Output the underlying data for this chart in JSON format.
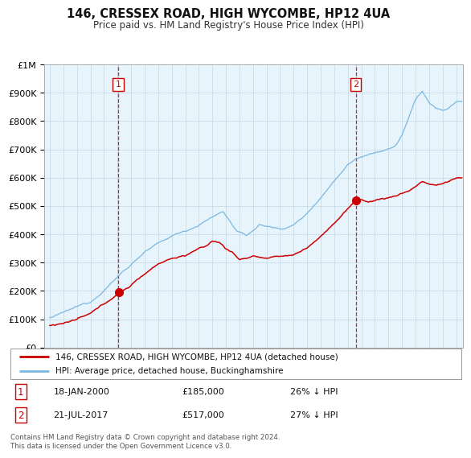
{
  "title": "146, CRESSEX ROAD, HIGH WYCOMBE, HP12 4UA",
  "subtitle": "Price paid vs. HM Land Registry's House Price Index (HPI)",
  "hpi_color": "#7ab8e0",
  "price_color": "#cc0000",
  "marker_color": "#cc0000",
  "bg_plot": "#e8f4fc",
  "transaction1_year": 2000.05,
  "transaction1_price": 185000,
  "transaction2_year": 2017.58,
  "transaction2_price": 517000,
  "ylabel_ticks": [
    "£0",
    "£100K",
    "£200K",
    "£300K",
    "£400K",
    "£500K",
    "£600K",
    "£700K",
    "£800K",
    "£900K",
    "£1M"
  ],
  "ytick_values": [
    0,
    100000,
    200000,
    300000,
    400000,
    500000,
    600000,
    700000,
    800000,
    900000,
    1000000
  ],
  "legend_property": "146, CRESSEX ROAD, HIGH WYCOMBE, HP12 4UA (detached house)",
  "legend_hpi": "HPI: Average price, detached house, Buckinghamshire",
  "footer": "Contains HM Land Registry data © Crown copyright and database right 2024.\nThis data is licensed under the Open Government Licence v3.0.",
  "background_color": "#ffffff",
  "grid_color": "#c8dce8"
}
